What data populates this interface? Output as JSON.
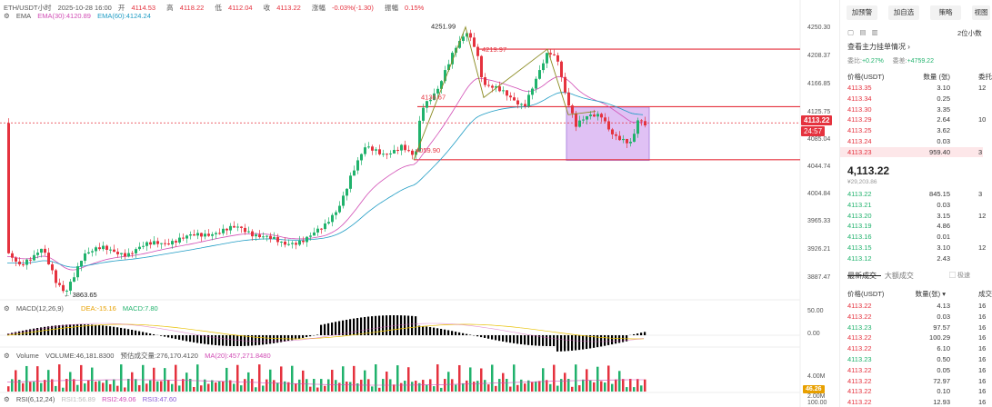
{
  "header": {
    "symbol": "ETH/USDT小时",
    "datetime": "2025-10-28 16:00",
    "open_label": "开",
    "open": "4114.53",
    "high_label": "高",
    "high": "4118.22",
    "low_label": "低",
    "low": "4112.04",
    "close_label": "收",
    "close": "4113.22",
    "change_label": "涨幅",
    "change": "-0.03%(-1.30)",
    "amp_label": "振幅",
    "amp": "0.15%"
  },
  "ema": {
    "label": "EMA",
    "ema30": "EMA(30):4120.89",
    "ema60": "EMA(60):4124.24"
  },
  "macd": {
    "label": "MACD(12,26,9)",
    "dea": "DEA:-15.16",
    "macd": "MACD:7.80"
  },
  "volume": {
    "label": "Volume",
    "vol": "VOLUME:46,181.8300",
    "pred": "预估成交量:276,170.4120",
    "ma20": "MA(20):457,271.8480"
  },
  "rsi": {
    "label": "RSI(6,12,24)",
    "r1": "RSI1:56.89",
    "r2": "RSI2:49.06",
    "r3": "RSI3:47.60"
  },
  "annotations": {
    "high": "4251.99",
    "a2": "4219.97",
    "a3": "4136.67",
    "a4": "4059.90",
    "low": "3863.65"
  },
  "y_axis": [
    "4250.30",
    "4208.37",
    "4166.85",
    "4125.75",
    "4085.04",
    "4044.74",
    "4004.84",
    "3965.33",
    "3926.21",
    "3887.47"
  ],
  "current_price": "4113.22",
  "countdown": "24:57",
  "macd_axis": [
    "50.00",
    "0.00"
  ],
  "vol_axis": [
    "4.00M",
    "2.00M"
  ],
  "rsi_axis": [
    "46.26",
    "100.00"
  ],
  "toolbar": {
    "alert": "加预警",
    "watch": "加自选",
    "strategy": "策略",
    "view": "视图"
  },
  "depth_select": "2位小数",
  "main_order": "查看主力挂单情况",
  "ratio": {
    "weibi_label": "委比:",
    "weibi": "+0.27%",
    "weicha_label": "委差:",
    "weicha": "+4759.22"
  },
  "book_headers": {
    "price": "价格(USDT)",
    "qty": "数量 (张)",
    "cum": "委托"
  },
  "asks": [
    {
      "p": "4113.35",
      "q": "3.10",
      "c": "12"
    },
    {
      "p": "4113.34",
      "q": "0.25",
      "c": ""
    },
    {
      "p": "4113.30",
      "q": "3.35",
      "c": ""
    },
    {
      "p": "4113.29",
      "q": "2.64",
      "c": "10"
    },
    {
      "p": "4113.25",
      "q": "3.62",
      "c": ""
    },
    {
      "p": "4113.24",
      "q": "0.03",
      "c": ""
    },
    {
      "p": "4113.23",
      "q": "959.40",
      "c": "3"
    }
  ],
  "last_price": "4,113.22",
  "last_sub": "¥29,203.86",
  "bids": [
    {
      "p": "4113.22",
      "q": "845.15",
      "c": "3"
    },
    {
      "p": "4113.21",
      "q": "0.03",
      "c": ""
    },
    {
      "p": "4113.20",
      "q": "3.15",
      "c": "12"
    },
    {
      "p": "4113.19",
      "q": "4.86",
      "c": ""
    },
    {
      "p": "4113.16",
      "q": "0.01",
      "c": ""
    },
    {
      "p": "4113.15",
      "q": "3.10",
      "c": "12"
    },
    {
      "p": "4113.12",
      "q": "2.43",
      "c": ""
    }
  ],
  "trade_tabs": {
    "latest": "最新成交",
    "large": "大额成交",
    "hide": "极速"
  },
  "trade_headers": {
    "price": "价格(USDT)",
    "qty": "数量(张)",
    "time": "成交"
  },
  "trades": [
    {
      "p": "4113.22",
      "q": "4.13",
      "c": "16",
      "side": "red"
    },
    {
      "p": "4113.22",
      "q": "0.03",
      "c": "16",
      "side": "red"
    },
    {
      "p": "4113.23",
      "q": "97.57",
      "c": "16",
      "side": "green"
    },
    {
      "p": "4113.22",
      "q": "100.29",
      "c": "16",
      "side": "red"
    },
    {
      "p": "4113.22",
      "q": "6.10",
      "c": "16",
      "side": "red"
    },
    {
      "p": "4113.23",
      "q": "0.50",
      "c": "16",
      "side": "green"
    },
    {
      "p": "4113.22",
      "q": "0.05",
      "c": "16",
      "side": "red"
    },
    {
      "p": "4113.22",
      "q": "72.97",
      "c": "16",
      "side": "red"
    },
    {
      "p": "4113.22",
      "q": "0.10",
      "c": "16",
      "side": "red"
    },
    {
      "p": "4113.22",
      "q": "12.93",
      "c": "16",
      "side": "red"
    }
  ]
}
